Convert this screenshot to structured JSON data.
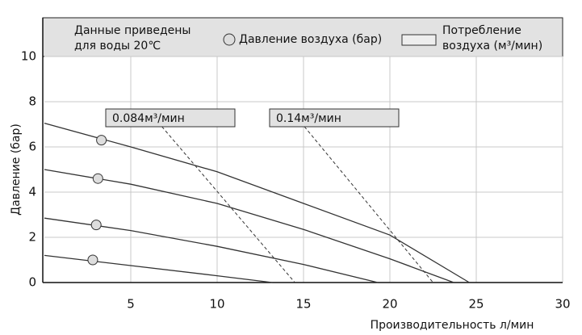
{
  "chart_data": {
    "type": "line",
    "note": [
      "Данные приведены",
      "для воды 20℃"
    ],
    "legend": {
      "pressure": "Давление воздуха (бар)",
      "consumption": [
        "Потребление",
        "воздуха (м³/мин)"
      ]
    },
    "x_label": "Производительность  л/мин",
    "y_label": "Давление (бар)",
    "xlim": [
      0,
      30
    ],
    "ylim": [
      0,
      10
    ],
    "xticks": [
      5,
      10,
      15,
      20,
      25,
      30
    ],
    "yticks": [
      0,
      2,
      4,
      6,
      8,
      10
    ],
    "grid": true,
    "color": "#333333",
    "series": [
      {
        "x": [
          0,
          5,
          10,
          15,
          20,
          24.6
        ],
        "values": [
          7.05,
          6.0,
          4.9,
          3.5,
          2.1,
          0
        ]
      },
      {
        "x": [
          0,
          5,
          10,
          15,
          20,
          23.7
        ],
        "values": [
          5.0,
          4.35,
          3.5,
          2.35,
          1.05,
          0
        ]
      },
      {
        "x": [
          0,
          5,
          10,
          15,
          19.3
        ],
        "values": [
          2.85,
          2.3,
          1.6,
          0.8,
          0
        ]
      },
      {
        "x": [
          0,
          5,
          10,
          13.2
        ],
        "values": [
          1.2,
          0.75,
          0.3,
          0
        ]
      }
    ],
    "markers": {
      "x": [
        3.3,
        3.1,
        3.0,
        2.8
      ],
      "values": [
        6.3,
        4.6,
        2.55,
        1.0
      ]
    },
    "consumption": [
      {
        "label": "0.084м³/мин",
        "x": [
          6.8,
          14.5
        ],
        "values": [
          6.9,
          0
        ]
      },
      {
        "label": "0.14м³/мин",
        "x": [
          15.05,
          22.5
        ],
        "values": [
          6.9,
          0
        ]
      }
    ]
  }
}
